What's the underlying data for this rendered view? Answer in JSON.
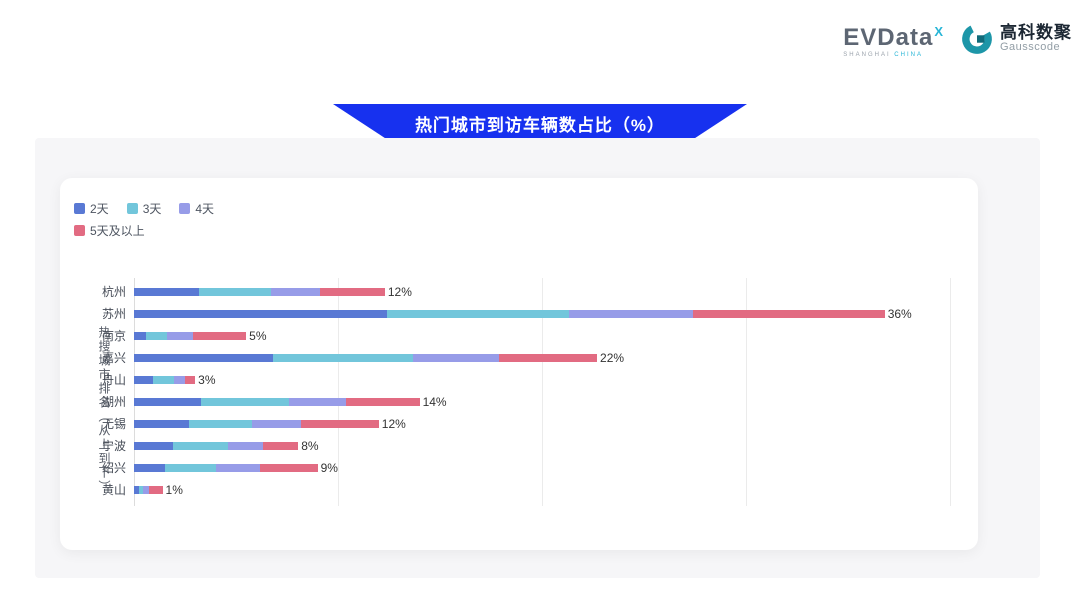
{
  "header": {
    "evdata": {
      "wordmark": "EVData",
      "superscript": "X",
      "tagline_left": "SHANGHAI",
      "tagline_right": "CHINA"
    },
    "gausscode": {
      "cn": "高科数聚",
      "en": "Gausscode"
    }
  },
  "banner": {
    "title": "热门城市到访车辆数占比（%）"
  },
  "colors": {
    "banner_blue": "#1731ef",
    "panel_gray": "#f6f6f8",
    "grid_line": "#ebebeb",
    "axis_line": "#dcdcdc",
    "city_label": "#464c57",
    "value_label": "#333333"
  },
  "chart_data": {
    "type": "bar",
    "orientation": "horizontal",
    "stacked": true,
    "title": "热门城市到访车辆数占比（%）",
    "ylabel": "热搜城市排名（从上到下）",
    "xlabel": "",
    "xlim": [
      0,
      40
    ],
    "grid_interval": 10,
    "grid": "on",
    "legend_position": "top-left",
    "categories": [
      "杭州",
      "苏州",
      "南京",
      "嘉兴",
      "舟山",
      "湖州",
      "无锡",
      "宁波",
      "绍兴",
      "黄山"
    ],
    "total_labels": [
      "12%",
      "36%",
      "5%",
      "22%",
      "3%",
      "14%",
      "12%",
      "8%",
      "9%",
      "1%"
    ],
    "series": [
      {
        "name": "2天",
        "color": "#5979d4",
        "values": [
          3.2,
          12.4,
          0.6,
          6.8,
          0.95,
          3.3,
          2.7,
          1.9,
          1.5,
          0.25
        ]
      },
      {
        "name": "3天",
        "color": "#72c6db",
        "values": [
          3.5,
          8.9,
          1.0,
          6.9,
          1.0,
          4.3,
          3.1,
          2.7,
          2.5,
          0.2
        ]
      },
      {
        "name": "4天",
        "color": "#979ce8",
        "values": [
          2.4,
          6.1,
          1.3,
          4.2,
          0.55,
          2.8,
          2.4,
          1.7,
          2.2,
          0.3
        ]
      },
      {
        "name": "5天及以上",
        "color": "#e26b82",
        "values": [
          3.2,
          9.4,
          2.6,
          4.8,
          0.5,
          3.6,
          3.8,
          1.75,
          2.8,
          0.65
        ]
      }
    ]
  }
}
